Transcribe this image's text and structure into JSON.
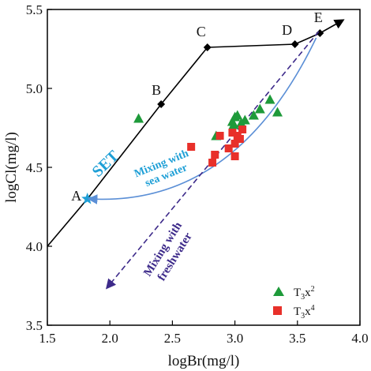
{
  "chart_data": {
    "type": "scatter",
    "xlabel": "logBr(mg/l)",
    "ylabel": "logCl(mg/l)",
    "xlim": [
      1.5,
      4.0
    ],
    "ylim": [
      3.5,
      5.5
    ],
    "x_ticks": [
      "1.5",
      "2.0",
      "2.5",
      "3.0",
      "3.5",
      "4.0"
    ],
    "y_ticks": [
      "3.5",
      "4.0",
      "4.5",
      "5.0",
      "5.5"
    ],
    "grid": false,
    "legend": "bottom-right",
    "colors": {
      "series1": "#1e9a3a",
      "series2": "#e8302a",
      "set_line": "#000000",
      "sea_water": "#5b8fd6",
      "freshwater": "#3d2a8a"
    },
    "set_path": {
      "label": "SET",
      "points": [
        {
          "label": "",
          "x": 1.5,
          "y": 4.0
        },
        {
          "label": "A",
          "x": 1.82,
          "y": 4.3
        },
        {
          "label": "B",
          "x": 2.41,
          "y": 4.9
        },
        {
          "label": "C",
          "x": 2.78,
          "y": 5.26
        },
        {
          "label": "D",
          "x": 3.48,
          "y": 5.28
        },
        {
          "label": "E",
          "x": 3.68,
          "y": 5.35
        },
        {
          "label": "",
          "x": 3.86,
          "y": 5.43
        }
      ]
    },
    "series": [
      {
        "name_base": "T",
        "name_sub": "3",
        "name_mid": "x",
        "name_sup": "2",
        "marker": "triangle",
        "points": [
          {
            "x": 2.23,
            "y": 4.81
          },
          {
            "x": 2.85,
            "y": 4.7
          },
          {
            "x": 2.98,
            "y": 4.79
          },
          {
            "x": 3.0,
            "y": 4.82
          },
          {
            "x": 3.02,
            "y": 4.83
          },
          {
            "x": 2.99,
            "y": 4.77
          },
          {
            "x": 3.05,
            "y": 4.78
          },
          {
            "x": 3.08,
            "y": 4.8
          },
          {
            "x": 3.15,
            "y": 4.83
          },
          {
            "x": 3.2,
            "y": 4.87
          },
          {
            "x": 3.28,
            "y": 4.93
          },
          {
            "x": 3.34,
            "y": 4.85
          }
        ]
      },
      {
        "name_base": "T",
        "name_sub": "3",
        "name_mid": "x",
        "name_sup": "4",
        "marker": "square",
        "points": [
          {
            "x": 2.65,
            "y": 4.63
          },
          {
            "x": 2.82,
            "y": 4.53
          },
          {
            "x": 2.84,
            "y": 4.58
          },
          {
            "x": 2.88,
            "y": 4.7
          },
          {
            "x": 2.98,
            "y": 4.72
          },
          {
            "x": 3.0,
            "y": 4.65
          },
          {
            "x": 3.02,
            "y": 4.7
          },
          {
            "x": 3.04,
            "y": 4.68
          },
          {
            "x": 3.06,
            "y": 4.74
          },
          {
            "x": 3.0,
            "y": 4.57
          },
          {
            "x": 2.95,
            "y": 4.62
          }
        ]
      }
    ],
    "annotations": {
      "set": "SET",
      "sea_line1": "Mixing with",
      "sea_line2": "sea water",
      "fresh_line1": "Mixing with",
      "fresh_line2": "freshwater"
    },
    "sea_water_curve": {
      "from": {
        "x": 3.65,
        "y": 5.32
      },
      "control": {
        "x": 3.0,
        "y": 4.25
      },
      "to": {
        "x": 1.84,
        "y": 4.3
      }
    },
    "freshwater_line": {
      "from": {
        "x": 3.67,
        "y": 5.36
      },
      "to": {
        "x": 1.98,
        "y": 3.74
      }
    }
  }
}
